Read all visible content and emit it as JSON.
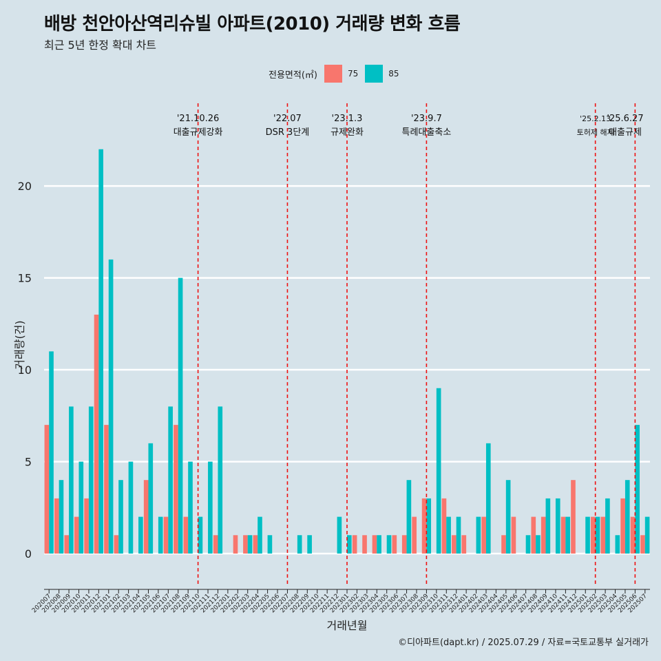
{
  "title": "배방 천안아산역리슈빌 아파트(2010) 거래량 변화 흐름",
  "subtitle": "최근 5년 한정 확대 차트",
  "caption": "©디아파트(dapt.kr) / 2025.07.29 / 자료=국토교통부 실거래가",
  "legend": {
    "title": "전용면적(㎡)",
    "items": [
      {
        "label": "75",
        "color": "#f8766d"
      },
      {
        "label": "85",
        "color": "#00bfc4"
      }
    ]
  },
  "chart_data": {
    "type": "bar",
    "xlabel": "거래년월",
    "ylabel": "거래량(건)",
    "ylim": [
      -1.8,
      24.5
    ],
    "yticks": [
      0,
      5,
      10,
      15,
      20
    ],
    "grid": true,
    "legend_position": "top",
    "categories": [
      "202007",
      "202008",
      "202009",
      "202010",
      "202011",
      "202012",
      "202101",
      "202102",
      "202103",
      "202104",
      "202105",
      "202106",
      "202107",
      "202108",
      "202109",
      "202110",
      "202111",
      "202112",
      "202201",
      "202202",
      "202203",
      "202204",
      "202205",
      "202206",
      "202207",
      "202208",
      "202209",
      "202210",
      "202211",
      "202212",
      "202301",
      "202302",
      "202303",
      "202304",
      "202305",
      "202306",
      "202307",
      "202308",
      "202309",
      "202310",
      "202311",
      "202312",
      "202401",
      "202402",
      "202403",
      "202404",
      "202405",
      "202406",
      "202407",
      "202408",
      "202409",
      "202410",
      "202411",
      "202412",
      "202501",
      "202502",
      "202503",
      "202504",
      "202505",
      "202506",
      "202507"
    ],
    "series": [
      {
        "name": "75",
        "color": "#f8766d",
        "values": [
          7,
          3,
          1,
          2,
          3,
          13,
          7,
          1,
          0,
          0,
          4,
          0,
          2,
          7,
          2,
          0,
          0,
          1,
          0,
          1,
          1,
          1,
          0,
          0,
          0,
          0,
          0,
          0,
          0,
          0,
          0,
          1,
          1,
          1,
          0,
          1,
          1,
          2,
          3,
          0,
          3,
          1,
          1,
          0,
          2,
          0,
          1,
          2,
          0,
          2,
          2,
          0,
          2,
          4,
          0,
          2,
          2,
          0,
          3,
          2,
          1
        ]
      },
      {
        "name": "85",
        "color": "#00bfc4",
        "values": [
          11,
          4,
          8,
          5,
          8,
          22,
          16,
          4,
          5,
          2,
          6,
          2,
          8,
          15,
          5,
          2,
          5,
          8,
          0,
          0,
          1,
          2,
          1,
          0,
          0,
          1,
          1,
          0,
          0,
          2,
          1,
          0,
          0,
          1,
          1,
          0,
          4,
          0,
          3,
          9,
          2,
          2,
          0,
          2,
          6,
          0,
          4,
          0,
          1,
          1,
          3,
          3,
          2,
          0,
          2,
          2,
          3,
          1,
          4,
          7,
          2
        ]
      }
    ],
    "events": [
      {
        "date": "'21.10.26",
        "label": "대출규제강화",
        "at": "202110"
      },
      {
        "date": "'22.07",
        "label": "DSR 3단계",
        "at": "202207"
      },
      {
        "date": "'23.1.3",
        "label": "규제완화",
        "at": "202301"
      },
      {
        "date": "'23.9.7",
        "label": "특례대출축소",
        "at": "202309"
      },
      {
        "date": "'25.2.13",
        "label": "토허제 해제",
        "at": "202502"
      },
      {
        "date": "'25.6.27",
        "label": "대출규제",
        "at": "202506"
      }
    ]
  }
}
